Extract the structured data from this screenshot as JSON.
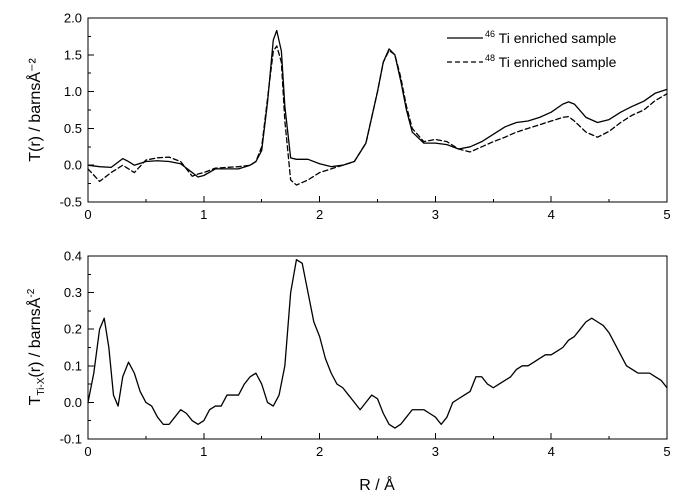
{
  "chart_data": [
    {
      "type": "line",
      "ylabel": "T(r) / barnsÅ⁻²",
      "xlim": [
        0,
        5
      ],
      "ylim": [
        -0.5,
        2.0
      ],
      "xticks": [
        "0",
        "1",
        "2",
        "3",
        "4",
        "5"
      ],
      "yticks": [
        "-0.5",
        "0.0",
        "0.5",
        "1.0",
        "1.5",
        "2.0"
      ],
      "legend_position": "top-right",
      "series": [
        {
          "name": "46Ti enriched sample",
          "legend_sup": "46",
          "legend_text": "Ti enriched sample",
          "style": "solid",
          "x": [
            0,
            0.1,
            0.2,
            0.3,
            0.35,
            0.4,
            0.5,
            0.6,
            0.7,
            0.8,
            0.9,
            0.95,
            1.0,
            1.1,
            1.2,
            1.3,
            1.4,
            1.45,
            1.5,
            1.55,
            1.6,
            1.63,
            1.67,
            1.7,
            1.75,
            1.8,
            1.9,
            2.0,
            2.1,
            2.2,
            2.3,
            2.4,
            2.5,
            2.55,
            2.6,
            2.65,
            2.7,
            2.75,
            2.8,
            2.9,
            3.0,
            3.1,
            3.2,
            3.3,
            3.4,
            3.5,
            3.6,
            3.7,
            3.8,
            3.9,
            4.0,
            4.1,
            4.15,
            4.2,
            4.3,
            4.4,
            4.5,
            4.6,
            4.7,
            4.8,
            4.9,
            5.0
          ],
          "y": [
            0.0,
            -0.02,
            -0.03,
            0.09,
            0.05,
            0.0,
            0.05,
            0.06,
            0.05,
            0.02,
            -0.1,
            -0.16,
            -0.14,
            -0.05,
            -0.05,
            -0.05,
            0.0,
            0.05,
            0.2,
            0.85,
            1.7,
            1.83,
            1.55,
            0.8,
            0.1,
            0.08,
            0.08,
            0.02,
            -0.02,
            0.0,
            0.05,
            0.3,
            1.0,
            1.4,
            1.58,
            1.5,
            1.15,
            0.75,
            0.45,
            0.3,
            0.3,
            0.28,
            0.22,
            0.25,
            0.32,
            0.42,
            0.52,
            0.58,
            0.6,
            0.65,
            0.72,
            0.83,
            0.86,
            0.83,
            0.65,
            0.58,
            0.62,
            0.72,
            0.8,
            0.87,
            0.98,
            1.03
          ]
        },
        {
          "name": "48Ti enriched sample",
          "legend_sup": "48",
          "legend_text": "Ti enriched sample",
          "style": "dashed",
          "x": [
            0,
            0.1,
            0.2,
            0.3,
            0.35,
            0.4,
            0.5,
            0.6,
            0.7,
            0.8,
            0.9,
            0.95,
            1.0,
            1.1,
            1.2,
            1.3,
            1.4,
            1.45,
            1.5,
            1.55,
            1.6,
            1.63,
            1.67,
            1.7,
            1.75,
            1.8,
            1.9,
            2.0,
            2.1,
            2.2,
            2.3,
            2.4,
            2.5,
            2.55,
            2.6,
            2.65,
            2.7,
            2.75,
            2.8,
            2.9,
            3.0,
            3.1,
            3.2,
            3.3,
            3.4,
            3.5,
            3.6,
            3.7,
            3.8,
            3.9,
            4.0,
            4.1,
            4.15,
            4.2,
            4.3,
            4.4,
            4.5,
            4.6,
            4.7,
            4.8,
            4.9,
            5.0
          ],
          "y": [
            -0.05,
            -0.22,
            -0.1,
            0.0,
            -0.05,
            -0.1,
            0.07,
            0.1,
            0.11,
            0.05,
            -0.15,
            -0.12,
            -0.1,
            -0.04,
            -0.03,
            -0.02,
            0.0,
            0.05,
            0.25,
            0.9,
            1.55,
            1.62,
            1.4,
            0.6,
            -0.2,
            -0.27,
            -0.2,
            -0.1,
            -0.05,
            0.0,
            0.05,
            0.3,
            1.0,
            1.4,
            1.56,
            1.5,
            1.2,
            0.8,
            0.5,
            0.32,
            0.35,
            0.32,
            0.22,
            0.18,
            0.25,
            0.32,
            0.38,
            0.45,
            0.5,
            0.55,
            0.6,
            0.65,
            0.66,
            0.6,
            0.45,
            0.38,
            0.46,
            0.58,
            0.68,
            0.75,
            0.88,
            0.97
          ]
        }
      ]
    },
    {
      "type": "line",
      "xlabel": "R / Å",
      "ylabel_main": "T",
      "ylabel_sub": "Ti-X",
      "ylabel_rest": "(r) / barnsÅ",
      "ylabel_sup": "-2",
      "xlim": [
        0,
        5
      ],
      "ylim": [
        -0.1,
        0.4
      ],
      "xticks": [
        "0",
        "1",
        "2",
        "3",
        "4",
        "5"
      ],
      "yticks": [
        "-0.1",
        "0.0",
        "0.1",
        "0.2",
        "0.3",
        "0.4"
      ],
      "series": [
        {
          "style": "solid",
          "x": [
            0,
            0.05,
            0.1,
            0.14,
            0.18,
            0.22,
            0.26,
            0.3,
            0.35,
            0.4,
            0.45,
            0.5,
            0.55,
            0.6,
            0.65,
            0.7,
            0.75,
            0.8,
            0.85,
            0.9,
            0.95,
            1.0,
            1.05,
            1.1,
            1.15,
            1.2,
            1.25,
            1.3,
            1.35,
            1.4,
            1.45,
            1.5,
            1.55,
            1.6,
            1.65,
            1.7,
            1.75,
            1.8,
            1.85,
            1.9,
            1.95,
            2.0,
            2.05,
            2.1,
            2.15,
            2.2,
            2.25,
            2.3,
            2.35,
            2.4,
            2.45,
            2.5,
            2.55,
            2.6,
            2.65,
            2.7,
            2.75,
            2.8,
            2.85,
            2.9,
            2.95,
            3.0,
            3.05,
            3.1,
            3.15,
            3.2,
            3.25,
            3.3,
            3.35,
            3.4,
            3.45,
            3.5,
            3.55,
            3.6,
            3.65,
            3.7,
            3.75,
            3.8,
            3.85,
            3.9,
            3.95,
            4.0,
            4.05,
            4.1,
            4.15,
            4.2,
            4.25,
            4.3,
            4.35,
            4.4,
            4.45,
            4.5,
            4.55,
            4.6,
            4.65,
            4.7,
            4.75,
            4.8,
            4.85,
            4.9,
            4.95,
            5.0
          ],
          "y": [
            0.0,
            0.08,
            0.2,
            0.23,
            0.15,
            0.02,
            -0.01,
            0.07,
            0.11,
            0.08,
            0.03,
            0.0,
            -0.01,
            -0.04,
            -0.06,
            -0.06,
            -0.04,
            -0.02,
            -0.03,
            -0.05,
            -0.06,
            -0.05,
            -0.02,
            -0.01,
            -0.01,
            0.02,
            0.02,
            0.02,
            0.05,
            0.07,
            0.08,
            0.05,
            0.0,
            -0.01,
            0.02,
            0.1,
            0.3,
            0.39,
            0.38,
            0.3,
            0.22,
            0.18,
            0.12,
            0.08,
            0.05,
            0.04,
            0.02,
            0.0,
            -0.02,
            0.0,
            0.02,
            0.01,
            -0.03,
            -0.06,
            -0.07,
            -0.06,
            -0.04,
            -0.02,
            -0.02,
            -0.02,
            -0.03,
            -0.04,
            -0.06,
            -0.04,
            0.0,
            0.01,
            0.02,
            0.03,
            0.07,
            0.07,
            0.05,
            0.04,
            0.05,
            0.06,
            0.07,
            0.09,
            0.1,
            0.1,
            0.11,
            0.12,
            0.13,
            0.13,
            0.14,
            0.15,
            0.17,
            0.18,
            0.2,
            0.22,
            0.23,
            0.22,
            0.21,
            0.19,
            0.16,
            0.13,
            0.1,
            0.09,
            0.08,
            0.08,
            0.08,
            0.07,
            0.06,
            0.04
          ]
        }
      ]
    }
  ]
}
